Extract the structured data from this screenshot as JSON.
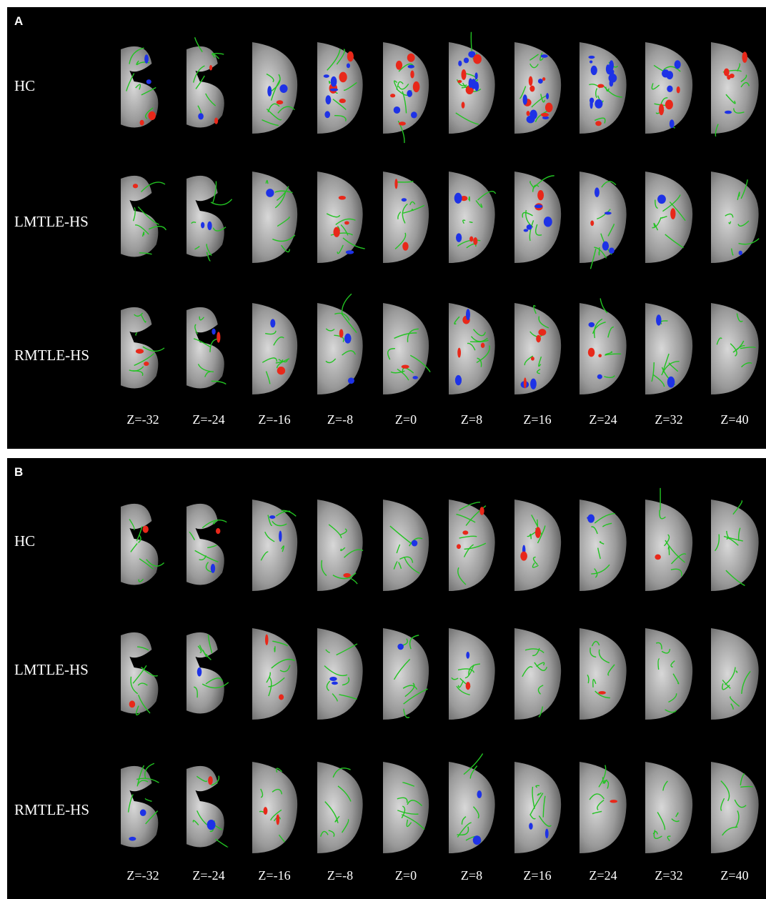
{
  "panels": [
    {
      "letter": "A",
      "rows": [
        "HC",
        "LMTLE-HS",
        "RMTLE-HS"
      ],
      "z_labels": [
        "Z=-32",
        "Z=-24",
        "Z=-16",
        "Z=-8",
        "Z=0",
        "Z=8",
        "Z=16",
        "Z=24",
        "Z=32",
        "Z=40"
      ]
    },
    {
      "letter": "B",
      "rows": [
        "HC",
        "LMTLE-HS",
        "RMTLE-HS"
      ],
      "z_labels": [
        "Z=-32",
        "Z=-24",
        "Z=-16",
        "Z=-8",
        "Z=0",
        "Z=8",
        "Z=16",
        "Z=24",
        "Z=32",
        "Z=40"
      ]
    }
  ],
  "colors": {
    "background": "#000000",
    "brain_tissue": "#9a9a9a",
    "tract_skeleton": "#22c322",
    "positive_cluster": "#e8281a",
    "negative_cluster": "#1e32e6"
  }
}
